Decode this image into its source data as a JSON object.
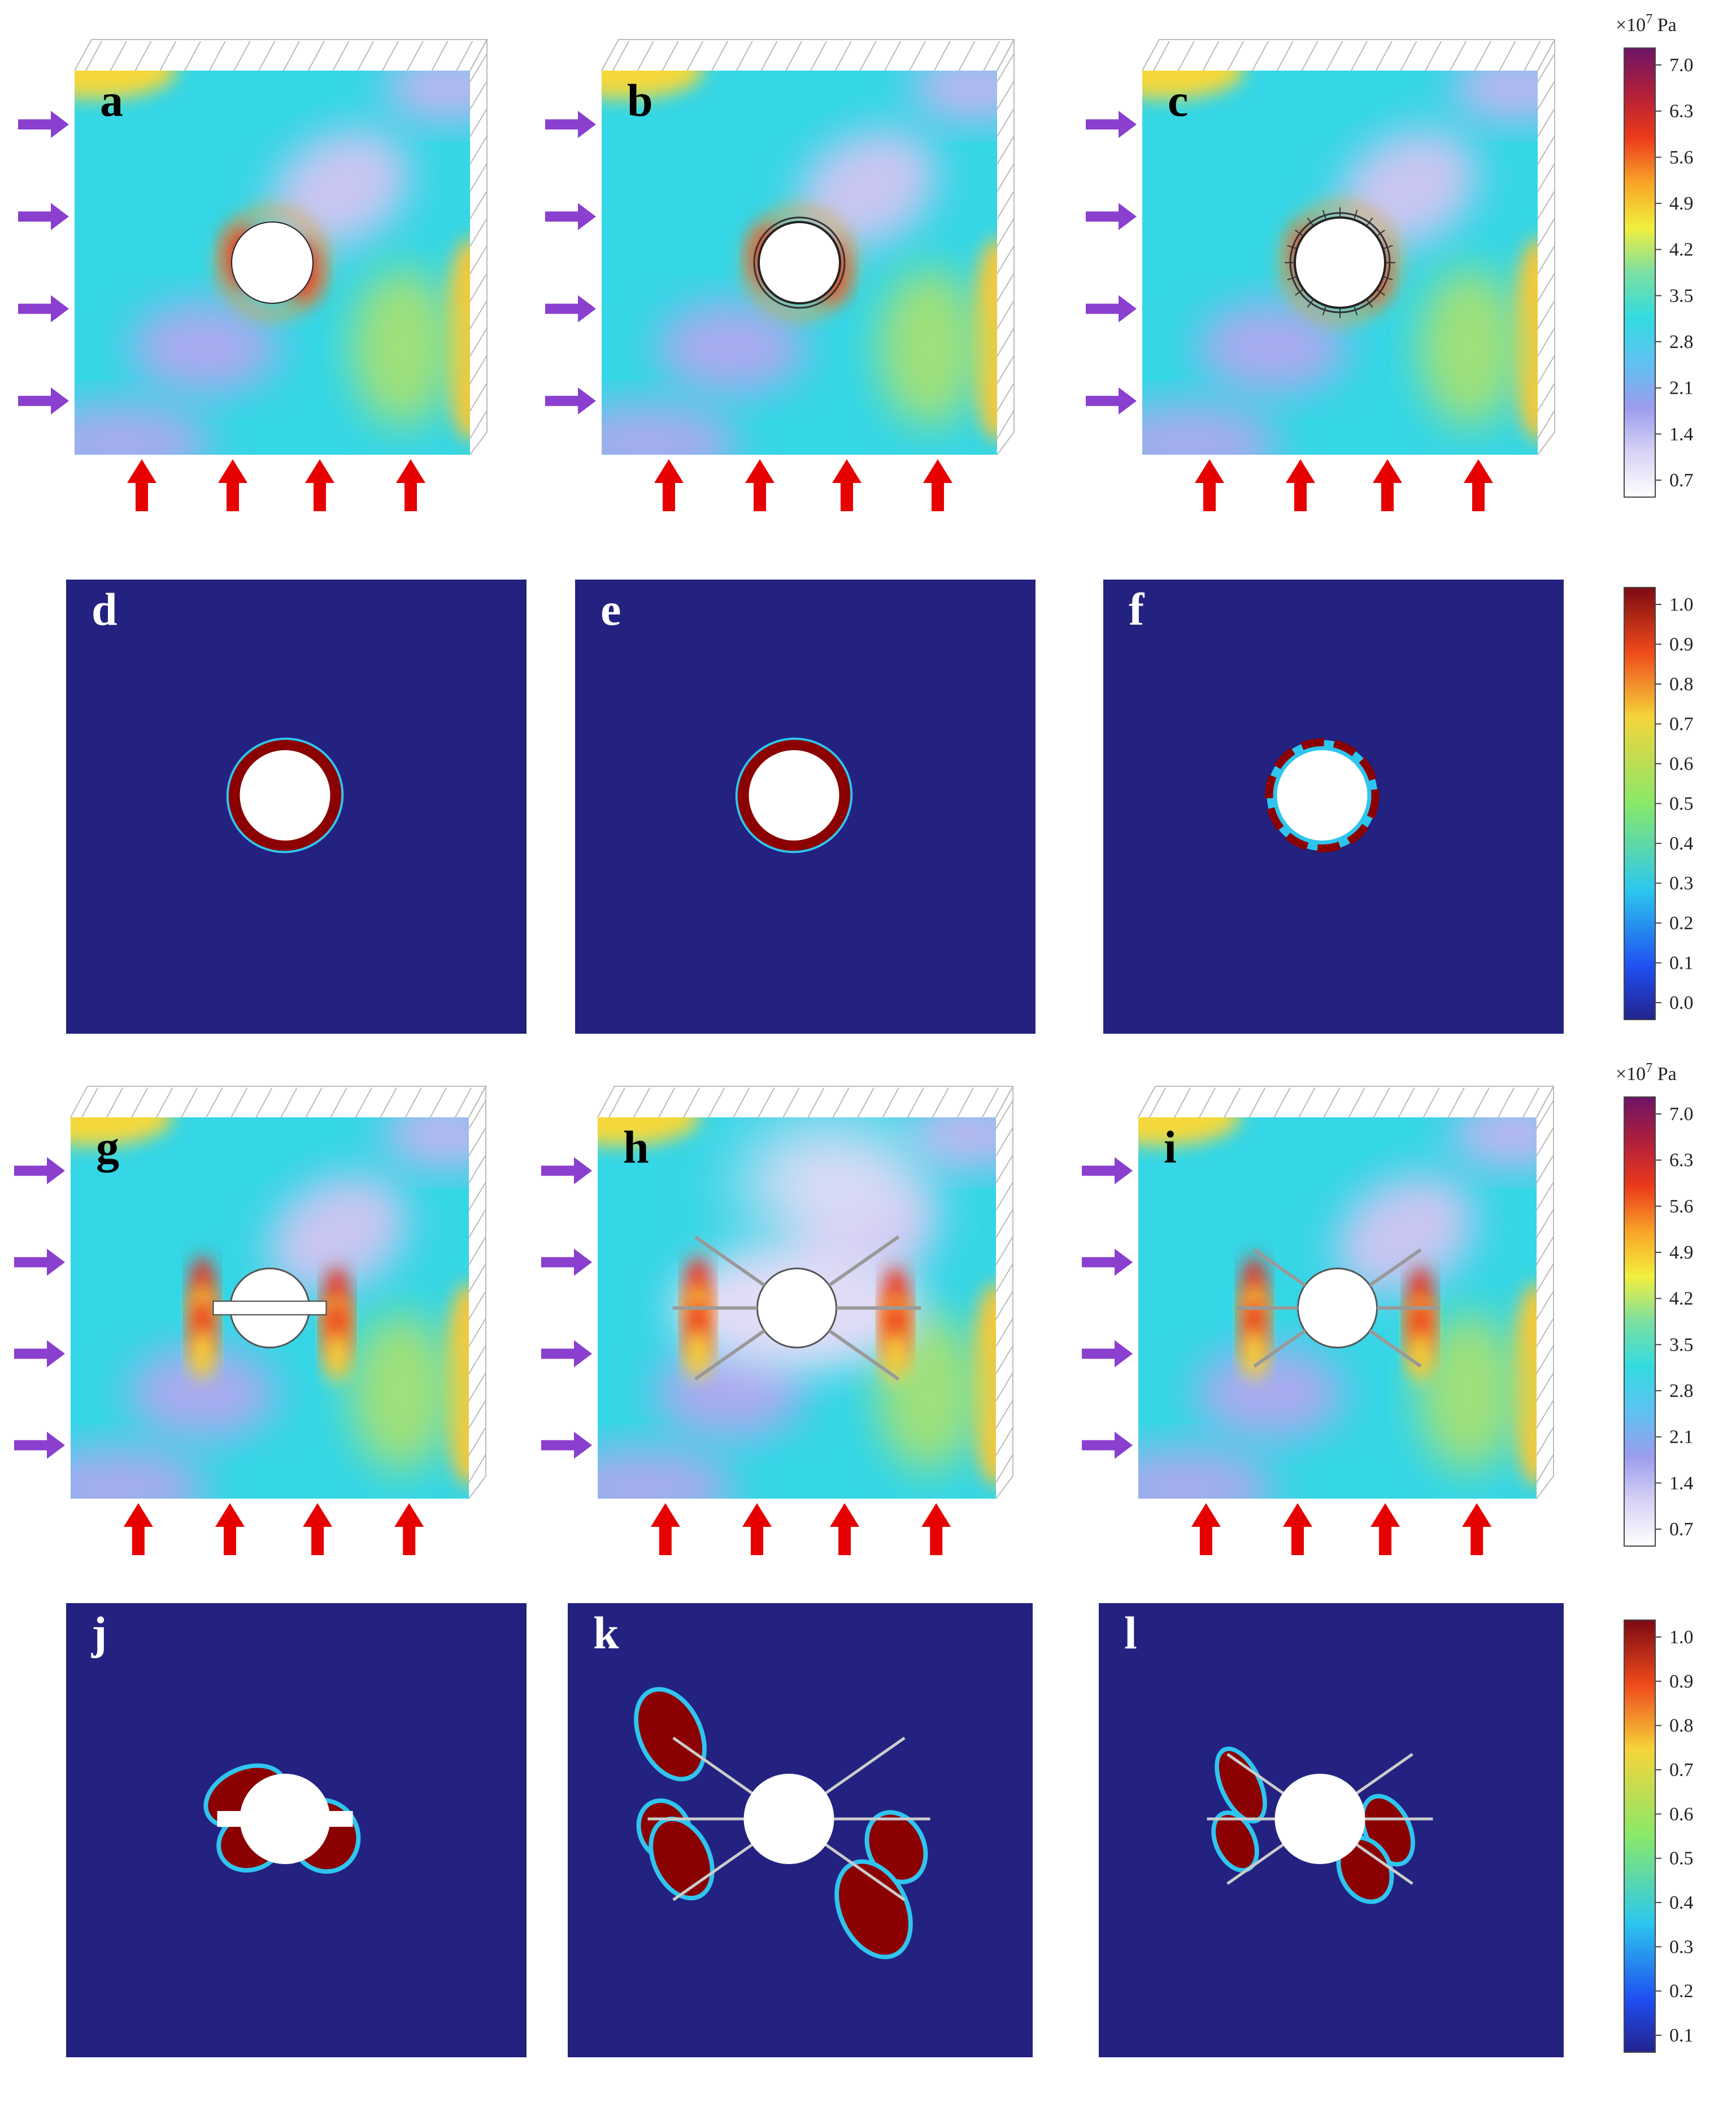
{
  "panels": [
    {
      "id": "a",
      "label": "a",
      "kind": "stress",
      "support": "none"
    },
    {
      "id": "b",
      "label": "b",
      "kind": "stress",
      "support": "lining"
    },
    {
      "id": "c",
      "label": "c",
      "kind": "stress",
      "support": "lining-bolts"
    },
    {
      "id": "d",
      "label": "d",
      "kind": "damage",
      "support": "none"
    },
    {
      "id": "e",
      "label": "e",
      "kind": "damage",
      "support": "lining"
    },
    {
      "id": "f",
      "label": "f",
      "kind": "damage",
      "support": "lining-bolts"
    },
    {
      "id": "g",
      "label": "g",
      "kind": "stress",
      "support": "bars"
    },
    {
      "id": "h",
      "label": "h",
      "kind": "stress",
      "support": "long-anchors"
    },
    {
      "id": "i",
      "label": "i",
      "kind": "stress",
      "support": "short-anchors"
    },
    {
      "id": "j",
      "label": "j",
      "kind": "damage",
      "support": "bars"
    },
    {
      "id": "k",
      "label": "k",
      "kind": "damage",
      "support": "long-anchors"
    },
    {
      "id": "l",
      "label": "l",
      "kind": "damage",
      "support": "short-anchors"
    }
  ],
  "colorbars": {
    "stress_top": {
      "unit_prefix": "×10",
      "unit_exp": "7",
      "unit_suffix": " Pa",
      "ticks": [
        "7.0",
        "6.3",
        "5.6",
        "4.9",
        "4.2",
        "3.5",
        "2.8",
        "2.1",
        "1.4",
        "0.7"
      ]
    },
    "damage_top": {
      "ticks": [
        "1.0",
        "0.9",
        "0.8",
        "0.7",
        "0.6",
        "0.5",
        "0.4",
        "0.3",
        "0.2",
        "0.1",
        "0.0"
      ]
    },
    "stress_bottom": {
      "unit_prefix": "×10",
      "unit_exp": "7",
      "unit_suffix": " Pa",
      "ticks": [
        "7.0",
        "6.3",
        "5.6",
        "4.9",
        "4.2",
        "3.5",
        "2.8",
        "2.1",
        "1.4",
        "0.7"
      ]
    },
    "damage_bottom": {
      "ticks": [
        "1.0",
        "0.9",
        "0.8",
        "0.7",
        "0.6",
        "0.5",
        "0.4",
        "0.3",
        "0.2",
        "0.1"
      ]
    }
  },
  "colors": {
    "horizontal_load_arrow": "#8a3fcf",
    "vertical_load_arrow": "#e60000",
    "damage_background": "#232280",
    "damage_zone": "#8b0000",
    "stress_base": "#35d6e6"
  }
}
